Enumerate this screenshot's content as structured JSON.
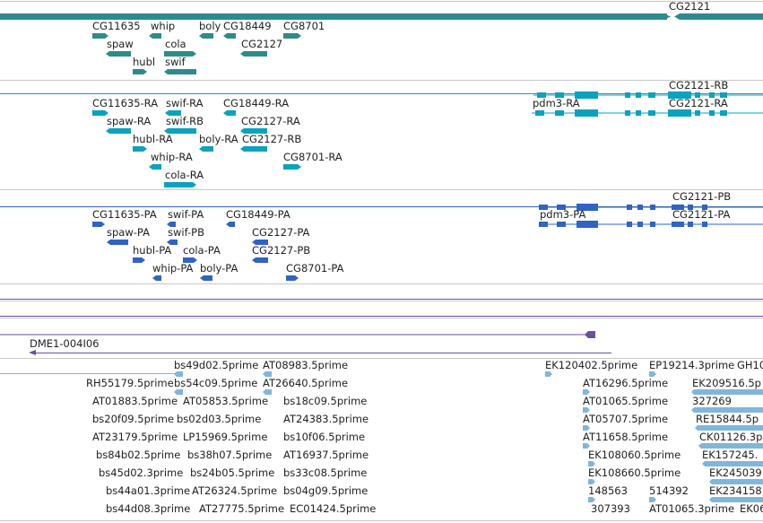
{
  "colors": {
    "genes": "#2e8b8b",
    "transcripts_ra": "#0aa2bf",
    "transcripts_pa": "#2f63c4",
    "tracks_purple": "#6a4fa3",
    "ests": "#7fb6dc",
    "separator": "#c8c8c8"
  },
  "gene_track": {
    "labels": {
      "cg2121": "CG2121",
      "cg11635": "CG11635",
      "whip": "whip",
      "boly": "boly",
      "cg18449": "CG18449",
      "cg8701": "CG8701",
      "spaw": "spaw",
      "cola": "cola",
      "cg2127": "CG2127",
      "hubl": "hubl",
      "swif": "swif"
    }
  },
  "ra_track": {
    "labels": {
      "cg2121_rb": "CG2121-RB",
      "cg11635_ra": "CG11635-RA",
      "swif_ra": "swif-RA",
      "cg18449_ra": "CG18449-RA",
      "pdm3_ra": "pdm3-RA",
      "cg2121_ra": "CG2121-RA",
      "spaw_ra": "spaw-RA",
      "swif_rb": "swif-RB",
      "cg2127_ra": "CG2127-RA",
      "hubl_ra": "hubl-RA",
      "boly_ra": "boly-RA",
      "cg2127_rb": "CG2127-RB",
      "whip_ra": "whip-RA",
      "cg8701_ra": "CG8701-RA",
      "cola_ra": "cola-RA"
    }
  },
  "pa_track": {
    "labels": {
      "cg2121_pb": "CG2121-PB",
      "cg11635_pa": "CG11635-PA",
      "swif_pa": "swif-PA",
      "cg18449_pa": "CG18449-PA",
      "pdm3_pa": "pdm3-PA",
      "cg2121_pa": "CG2121-PA",
      "spaw_pa": "spaw-PA",
      "swif_pb": "swif-PB",
      "cg2127_pa": "CG2127-PA",
      "hubl_pa": "hubl-PA",
      "cola_pa": "cola-PA",
      "cg2127_pb": "CG2127-PB",
      "whip_pa": "whip-PA",
      "boly_pa": "boly-PA",
      "cg8701_pa": "CG8701-PA"
    }
  },
  "clone_track": {
    "label": "DME1-004I06"
  },
  "est_track": {
    "left": [
      "bs49d02.5prime",
      "AT08983.5prime",
      "RH55179.5prime",
      "bs54c09.5prime",
      "AT26640.5prime",
      "AT01883.5prime",
      "AT05853.5prime",
      "bs18c09.5prime",
      "bs20f09.5prime",
      "bs02d03.5prime",
      "AT24383.5prime",
      "AT23179.5prime",
      "LP15969.5prime",
      "bs10f06.5prime",
      "bs84b02.5prime",
      "bs38h07.5prime",
      "AT16937.5prime",
      "bs45d02.3prime",
      "bs24b05.5prime",
      "bs33c08.5prime",
      "bs44a01.3prime",
      "AT26324.5prime",
      "bs04g09.5prime",
      "bs44d08.3prime",
      "AT27775.5prime",
      "EC01424.5prime"
    ],
    "right": [
      "EK120402.5prime",
      "EP19214.3prime",
      "GH10",
      "AT16296.5prime",
      "EK209516.5p",
      "AT01065.5prime",
      "327269",
      "AT05707.5prime",
      "RE15844.5p",
      "AT11658.5prime",
      "CK01126.3p",
      "EK108060.5prime",
      "EK157245.",
      "EK108660.5prime",
      "EK245039",
      "148563",
      "514392",
      "EK234158",
      "307393",
      "AT01065.3prime",
      "EK06"
    ]
  }
}
